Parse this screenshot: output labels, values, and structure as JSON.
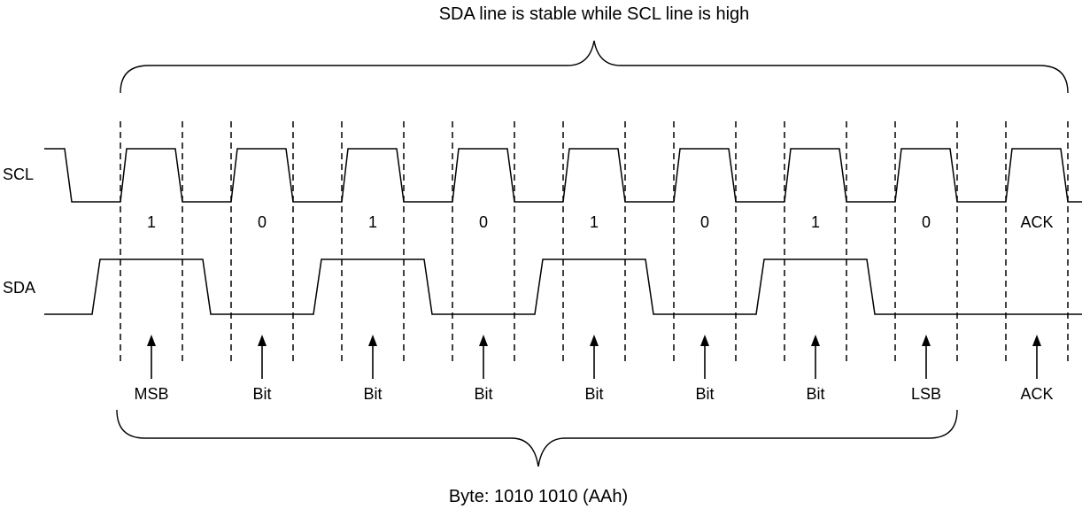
{
  "title": "SDA line is stable while SCL line is high",
  "signals": {
    "clock_label": "SCL",
    "data_label": "SDA"
  },
  "bits": [
    {
      "value": "1",
      "marker": "MSB"
    },
    {
      "value": "0",
      "marker": "Bit"
    },
    {
      "value": "1",
      "marker": "Bit"
    },
    {
      "value": "0",
      "marker": "Bit"
    },
    {
      "value": "1",
      "marker": "Bit"
    },
    {
      "value": "0",
      "marker": "Bit"
    },
    {
      "value": "1",
      "marker": "Bit"
    },
    {
      "value": "0",
      "marker": "LSB"
    },
    {
      "value": "ACK",
      "marker": "ACK"
    }
  ],
  "byte_caption": "Byte: 1010 1010 (AAh)",
  "colors": {
    "line": "#000000",
    "background": "#ffffff"
  }
}
